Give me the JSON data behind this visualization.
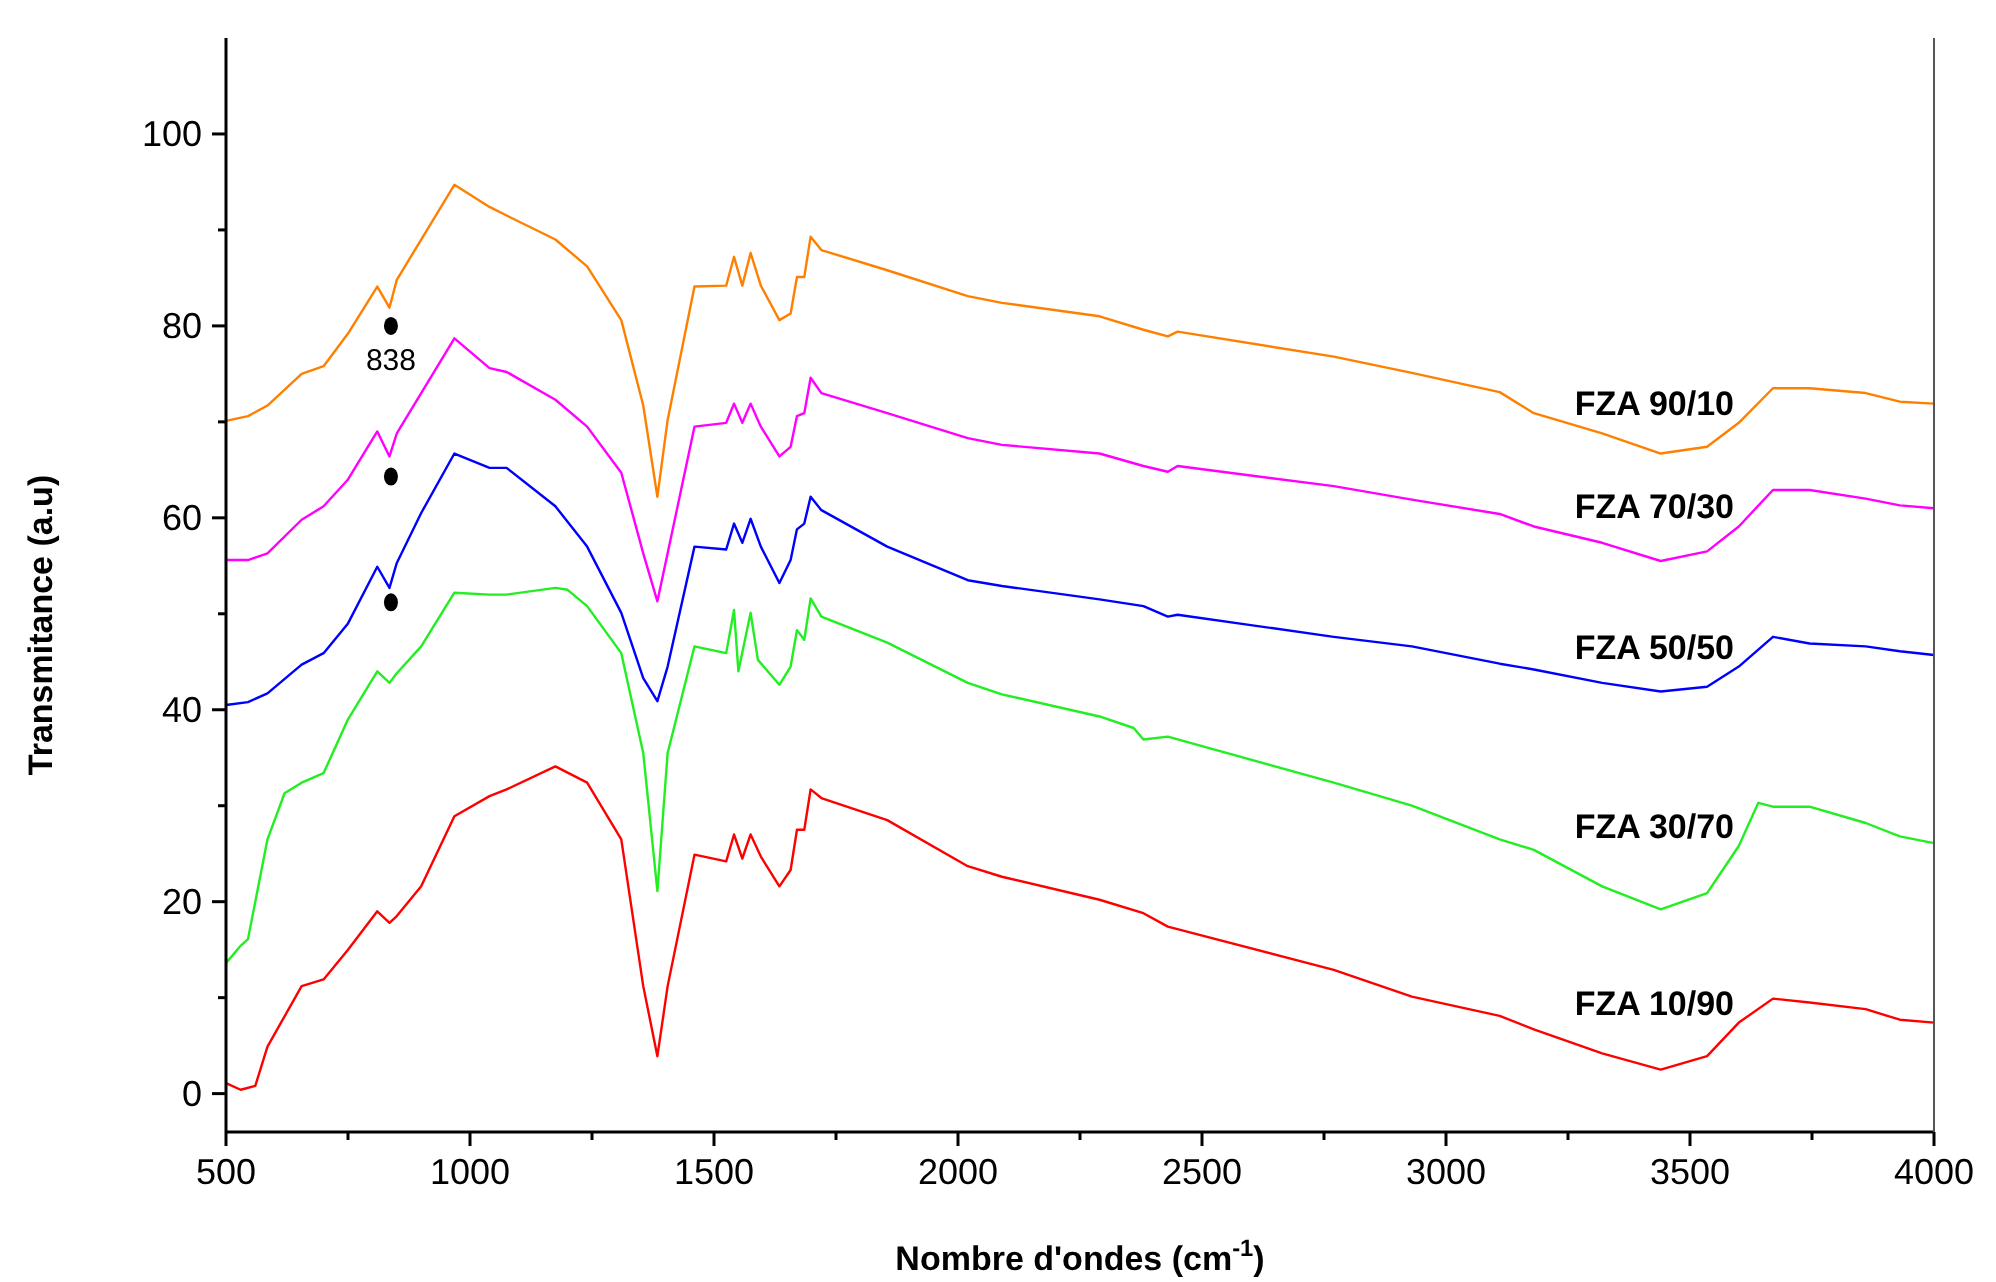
{
  "chart_data": {
    "type": "line",
    "xlabel": "Nombre d'ondes (cm$^{-1}$)",
    "ylabel": "Transmitance (a.u)",
    "xlim": [
      500,
      4000
    ],
    "xticks": [
      500,
      {
        "value": 750,
        "label": null
      },
      1000,
      {
        "value": 1250,
        "label": null
      },
      1500,
      {
        "value": 1750,
        "label": null
      },
      2000,
      {
        "value": 2250,
        "label": null
      },
      2500,
      {
        "value": 2750,
        "label": null
      },
      3000,
      {
        "value": 3250,
        "label": null
      },
      3500,
      {
        "value": 3750,
        "label": null
      },
      4000
    ],
    "ylim": [
      -4,
      110
    ],
    "yticks": [
      0,
      {
        "value": 10,
        "label": null
      },
      20,
      {
        "value": 30,
        "label": null
      },
      40,
      {
        "value": 50,
        "label": null
      },
      60,
      {
        "value": 70,
        "label": null
      },
      80,
      {
        "value": 90,
        "label": null
      },
      100
    ],
    "legend": false,
    "annotations": [
      "838"
    ],
    "series": [
      {
        "name": "FZA 90/10",
        "color": "#ff8000",
        "x": [
          500,
          545,
          585,
          655,
          700,
          750,
          810,
          835,
          850,
          900,
          968,
          1040,
          1075,
          1175,
          1240,
          1310,
          1355,
          1384,
          1405,
          1460,
          1525,
          1541,
          1558,
          1575,
          1596,
          1634,
          1657,
          1670,
          1685,
          1698,
          1720,
          1855,
          2020,
          2090,
          2290,
          2380,
          2430,
          2450,
          2770,
          2930,
          3110,
          3180,
          3320,
          3440,
          3535,
          3600,
          3670,
          3745,
          3860,
          3930,
          4000
        ],
        "values": [
          70.1,
          70.6,
          71.7,
          75,
          75.8,
          79.2,
          84.1,
          81.9,
          84.8,
          89,
          94.7,
          92.4,
          91.5,
          89,
          86.2,
          80.6,
          71.7,
          62.2,
          70.2,
          84.1,
          84.2,
          87.2,
          84.2,
          87.6,
          84.2,
          80.6,
          81.3,
          85.1,
          85.1,
          89.3,
          87.9,
          85.8,
          83.1,
          82.4,
          81,
          79.6,
          78.9,
          79.4,
          76.8,
          75.1,
          73.1,
          70.9,
          68.8,
          66.7,
          67.4,
          69.9,
          73.5,
          73.5,
          73,
          72.1,
          71.9
        ]
      },
      {
        "name": "FZA 70/30",
        "color": "#ff00ff",
        "x": [
          500,
          545,
          585,
          655,
          700,
          750,
          810,
          835,
          850,
          900,
          968,
          1040,
          1075,
          1175,
          1240,
          1310,
          1355,
          1384,
          1405,
          1460,
          1525,
          1541,
          1558,
          1575,
          1596,
          1634,
          1657,
          1670,
          1685,
          1698,
          1720,
          1855,
          2020,
          2090,
          2290,
          2380,
          2430,
          2450,
          2770,
          2930,
          3110,
          3180,
          3320,
          3440,
          3535,
          3600,
          3670,
          3745,
          3860,
          3930,
          4000
        ],
        "values": [
          55.6,
          55.6,
          56.3,
          59.8,
          61.2,
          64,
          69,
          66.4,
          68.8,
          73,
          78.7,
          75.6,
          75.2,
          72.3,
          69.5,
          64.7,
          56.3,
          51.3,
          56.3,
          69.5,
          69.9,
          71.9,
          69.9,
          71.9,
          69.5,
          66.4,
          67.4,
          70.6,
          70.9,
          74.6,
          73,
          70.9,
          68.3,
          67.6,
          66.7,
          65.4,
          64.8,
          65.4,
          63.3,
          61.9,
          60.4,
          59.1,
          57.4,
          55.5,
          56.5,
          59.1,
          62.9,
          62.9,
          62,
          61.3,
          61
        ]
      },
      {
        "name": "FZA 50/50",
        "color": "#0000ff",
        "x": [
          500,
          545,
          585,
          655,
          700,
          750,
          810,
          835,
          850,
          900,
          968,
          1040,
          1075,
          1175,
          1240,
          1310,
          1355,
          1384,
          1405,
          1460,
          1525,
          1541,
          1558,
          1575,
          1596,
          1634,
          1657,
          1670,
          1685,
          1698,
          1720,
          1855,
          2020,
          2090,
          2290,
          2380,
          2430,
          2450,
          2770,
          2930,
          3110,
          3180,
          3320,
          3440,
          3535,
          3600,
          3670,
          3745,
          3860,
          3930,
          4000
        ],
        "values": [
          40.5,
          40.8,
          41.7,
          44.7,
          45.9,
          49,
          54.9,
          52.7,
          55.3,
          60.5,
          66.7,
          65.2,
          65.2,
          61.2,
          57,
          50.1,
          43.3,
          40.9,
          44.5,
          57,
          56.7,
          59.4,
          57.4,
          59.9,
          57,
          53.2,
          55.6,
          58.8,
          59.4,
          62.2,
          60.8,
          57,
          53.5,
          52.9,
          51.5,
          50.8,
          49.7,
          49.9,
          47.6,
          46.6,
          44.8,
          44.2,
          42.8,
          41.9,
          42.4,
          44.5,
          47.6,
          46.9,
          46.6,
          46.1,
          45.7
        ]
      },
      {
        "name": "FZA 30/70",
        "color": "#22ee22",
        "x": [
          500,
          530,
          545,
          585,
          620,
          655,
          700,
          750,
          810,
          835,
          850,
          900,
          968,
          1040,
          1075,
          1175,
          1200,
          1240,
          1310,
          1355,
          1384,
          1405,
          1460,
          1525,
          1541,
          1550,
          1575,
          1590,
          1634,
          1657,
          1670,
          1685,
          1698,
          1720,
          1855,
          2020,
          2090,
          2290,
          2360,
          2380,
          2430,
          2770,
          2930,
          3110,
          3180,
          3320,
          3440,
          3535,
          3600,
          3640,
          3670,
          3745,
          3860,
          3930,
          4000
        ],
        "values": [
          13.6,
          15.4,
          16.1,
          26.5,
          31.3,
          32.4,
          33.4,
          39,
          44,
          42.8,
          43.8,
          46.6,
          52.2,
          52,
          52,
          52.7,
          52.5,
          50.8,
          45.9,
          35.5,
          21.1,
          35.5,
          46.6,
          45.9,
          50.4,
          44,
          50.1,
          45.2,
          42.6,
          44.5,
          48.3,
          47.3,
          51.6,
          49.7,
          47,
          42.8,
          41.6,
          39.3,
          38.1,
          36.9,
          37.2,
          32.4,
          30,
          26.5,
          25.4,
          21.6,
          19.2,
          20.9,
          25.8,
          30.3,
          29.9,
          29.9,
          28.2,
          26.8,
          26.1
        ]
      },
      {
        "name": "FZA 10/90",
        "color": "#ff0000",
        "x": [
          500,
          530,
          560,
          585,
          655,
          700,
          750,
          810,
          835,
          850,
          900,
          968,
          1040,
          1075,
          1175,
          1240,
          1310,
          1355,
          1384,
          1405,
          1460,
          1525,
          1541,
          1558,
          1575,
          1596,
          1634,
          1657,
          1670,
          1685,
          1698,
          1720,
          1855,
          2020,
          2090,
          2290,
          2380,
          2430,
          2770,
          2930,
          3110,
          3180,
          3320,
          3440,
          3535,
          3600,
          3670,
          3745,
          3860,
          3930,
          4000
        ],
        "values": [
          1.1,
          0.4,
          0.8,
          4.9,
          11.2,
          11.9,
          15,
          19,
          17.8,
          18.5,
          21.6,
          28.9,
          31,
          31.7,
          34.1,
          32.4,
          26.5,
          11.2,
          3.9,
          11.2,
          24.9,
          24.2,
          27,
          24.5,
          27,
          24.7,
          21.6,
          23.3,
          27.5,
          27.5,
          31.7,
          30.8,
          28.5,
          23.7,
          22.6,
          20.2,
          18.8,
          17.4,
          12.9,
          10.1,
          8.1,
          6.7,
          4.2,
          2.5,
          3.9,
          7.4,
          9.9,
          9.5,
          8.8,
          7.7,
          7.4
        ]
      },
      {
        "type": "scatter",
        "color": "#000000",
        "marker": "circle",
        "x": [
          838,
          838,
          838
        ],
        "values": [
          80,
          64.3,
          51.2
        ]
      }
    ]
  }
}
